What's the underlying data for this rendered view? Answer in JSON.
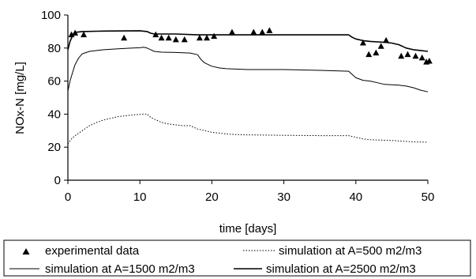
{
  "chart_data": {
    "type": "line",
    "xlabel": "time [days]",
    "ylabel": "NOx-N [mg/L]",
    "xlim": [
      0,
      50
    ],
    "ylim": [
      0,
      100
    ],
    "xticks": [
      0,
      10,
      20,
      30,
      40,
      50
    ],
    "yticks": [
      0,
      20,
      40,
      60,
      80,
      100
    ],
    "grid": false,
    "legend_position": "bottom",
    "series": [
      {
        "name": "experimental data",
        "kind": "markers",
        "marker": "triangle",
        "color": "#000000",
        "points": [
          [
            0.5,
            88
          ],
          [
            1.0,
            89
          ],
          [
            2.2,
            88
          ],
          [
            7.8,
            86
          ],
          [
            12.2,
            88
          ],
          [
            13.0,
            86
          ],
          [
            14.0,
            86
          ],
          [
            15.0,
            85
          ],
          [
            16.2,
            85
          ],
          [
            18.3,
            86
          ],
          [
            19.3,
            86
          ],
          [
            20.3,
            87
          ],
          [
            22.8,
            89.5
          ],
          [
            25.8,
            89.5
          ],
          [
            27.0,
            89.5
          ],
          [
            28.0,
            90.5
          ],
          [
            41.0,
            83
          ],
          [
            41.8,
            76
          ],
          [
            42.8,
            77
          ],
          [
            43.5,
            81
          ],
          [
            44.2,
            84.5
          ],
          [
            46.3,
            75
          ],
          [
            47.2,
            76
          ],
          [
            48.3,
            75
          ],
          [
            49.2,
            74
          ],
          [
            49.8,
            71.5
          ],
          [
            50.2,
            72
          ]
        ]
      },
      {
        "name": "simulation at A=500 m2/m3",
        "kind": "line",
        "style": "dotted",
        "color": "#000000",
        "points": [
          [
            0,
            22
          ],
          [
            0.5,
            25
          ],
          [
            1,
            27
          ],
          [
            2,
            30
          ],
          [
            3,
            33
          ],
          [
            4,
            35
          ],
          [
            5,
            36.5
          ],
          [
            6,
            37.5
          ],
          [
            7,
            38.5
          ],
          [
            8,
            39
          ],
          [
            9,
            39.5
          ],
          [
            10,
            39.8
          ],
          [
            10.5,
            40
          ],
          [
            11,
            40
          ],
          [
            11.5,
            38
          ],
          [
            12,
            37
          ],
          [
            13,
            35
          ],
          [
            14,
            34
          ],
          [
            15,
            33.5
          ],
          [
            16,
            33
          ],
          [
            17,
            33
          ],
          [
            18,
            31
          ],
          [
            19,
            30
          ],
          [
            20,
            29
          ],
          [
            21,
            28.5
          ],
          [
            22,
            28
          ],
          [
            24,
            27.5
          ],
          [
            30,
            27.2
          ],
          [
            35,
            27
          ],
          [
            39,
            27
          ],
          [
            40,
            26
          ],
          [
            41,
            25
          ],
          [
            42,
            24.5
          ],
          [
            45,
            24
          ],
          [
            47,
            23.5
          ],
          [
            48,
            23.2
          ],
          [
            50,
            23
          ]
        ]
      },
      {
        "name": "simulation at A=1500 m2/m3",
        "kind": "line",
        "style": "solid",
        "width": 1,
        "color": "#000000",
        "points": [
          [
            0,
            54
          ],
          [
            0.3,
            60
          ],
          [
            0.7,
            66
          ],
          [
            1,
            70
          ],
          [
            1.5,
            74
          ],
          [
            2,
            76.5
          ],
          [
            3,
            78
          ],
          [
            4,
            78.5
          ],
          [
            5,
            79
          ],
          [
            7,
            79.5
          ],
          [
            9,
            80
          ],
          [
            10,
            80.2
          ],
          [
            10.5,
            80.5
          ],
          [
            11,
            80
          ],
          [
            11.5,
            79
          ],
          [
            12,
            78
          ],
          [
            13,
            77.5
          ],
          [
            15,
            77.3
          ],
          [
            17,
            77
          ],
          [
            18,
            76
          ],
          [
            18.5,
            73
          ],
          [
            19,
            71
          ],
          [
            19.5,
            70
          ],
          [
            20,
            69
          ],
          [
            21,
            68
          ],
          [
            22,
            67.5
          ],
          [
            25,
            67
          ],
          [
            30,
            67
          ],
          [
            35,
            66.5
          ],
          [
            39,
            66
          ],
          [
            39.5,
            64
          ],
          [
            40,
            62
          ],
          [
            41,
            60.5
          ],
          [
            42,
            60
          ],
          [
            43,
            59
          ],
          [
            44,
            58
          ],
          [
            46,
            57.5
          ],
          [
            47,
            57
          ],
          [
            48,
            56
          ],
          [
            49,
            54.5
          ],
          [
            50,
            53.5
          ]
        ]
      },
      {
        "name": "simulation at A=2500 m2/m3",
        "kind": "line",
        "style": "solid",
        "width": 1.6,
        "color": "#000000",
        "points": [
          [
            0,
            79
          ],
          [
            0.3,
            84
          ],
          [
            0.7,
            88
          ],
          [
            1,
            89.5
          ],
          [
            2,
            90
          ],
          [
            5,
            90.3
          ],
          [
            10,
            90.5
          ],
          [
            11,
            90
          ],
          [
            11.5,
            89
          ],
          [
            12,
            88.5
          ],
          [
            15,
            88.5
          ],
          [
            18,
            88
          ],
          [
            20,
            88
          ],
          [
            25,
            88
          ],
          [
            30,
            88
          ],
          [
            35,
            88
          ],
          [
            39,
            88
          ],
          [
            39.5,
            86.5
          ],
          [
            40,
            85.5
          ],
          [
            41,
            84.5
          ],
          [
            42,
            84
          ],
          [
            44,
            83.5
          ],
          [
            45,
            83
          ],
          [
            46,
            82
          ],
          [
            47,
            80
          ],
          [
            48,
            79
          ],
          [
            49,
            78.5
          ],
          [
            50,
            78
          ]
        ]
      }
    ]
  }
}
